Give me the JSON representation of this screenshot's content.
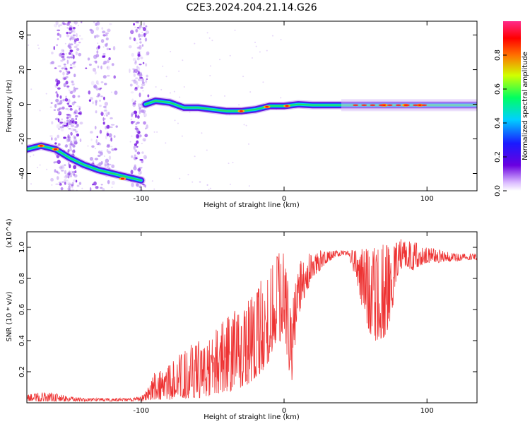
{
  "title": "C2E3.2024.204.21.14.G26",
  "chart_data": [
    {
      "type": "heatmap",
      "xlabel": "Height of straight line (km)",
      "ylabel": "Frequency (Hz)",
      "xlim": [
        -180,
        135
      ],
      "ylim": [
        -50,
        48
      ],
      "xticks": [
        -100,
        0,
        100
      ],
      "yticks": [
        -40,
        -20,
        0,
        20,
        40
      ],
      "colorbar": {
        "label": "Normalized spectral amplitude",
        "range": [
          0,
          1
        ],
        "ticks": [
          "0.0",
          "0.2",
          "0.4",
          "0.6",
          "0.8"
        ],
        "tick_values": [
          0,
          0.2,
          0.4,
          0.6,
          0.8
        ]
      },
      "ridge": {
        "x": [
          -180,
          -170,
          -160,
          -150,
          -140,
          -130,
          -120,
          -110,
          -100,
          -97,
          -90,
          -80,
          -70,
          -60,
          -50,
          -40,
          -30,
          -20,
          -10,
          0,
          10,
          20,
          40,
          60,
          80,
          100,
          120,
          135
        ],
        "y": [
          -26,
          -24,
          -26,
          -31,
          -35,
          -38,
          -40,
          -42,
          -44,
          0,
          2,
          1,
          -2,
          -2,
          -3,
          -4,
          -4,
          -3,
          -1,
          -1,
          0,
          -0.5,
          -0.5,
          -0.5,
          -0.5,
          -0.5,
          -0.5,
          -0.5
        ]
      }
    },
    {
      "type": "line",
      "xlabel": "Height of straight line (km)",
      "ylabel": "SNR (10 * v/v)",
      "yscale_note": "(x10^4)",
      "xlim": [
        -180,
        135
      ],
      "ylim": [
        0,
        1.1
      ],
      "xticks": [
        -100,
        0,
        100
      ],
      "yticks": [
        0.2,
        0.4,
        0.6,
        0.8,
        1.0
      ],
      "series": [
        {
          "color": "#ee3333",
          "x": [
            -180,
            -170,
            -160,
            -150,
            -140,
            -130,
            -120,
            -110,
            -100,
            -95,
            -90,
            -85,
            -80,
            -75,
            -70,
            -65,
            -60,
            -55,
            -50,
            -45,
            -40,
            -35,
            -30,
            -25,
            -20,
            -15,
            -10,
            -5,
            0,
            5,
            10,
            15,
            20,
            25,
            30,
            35,
            40,
            45,
            50,
            55,
            60,
            65,
            70,
            75,
            80,
            85,
            90,
            95,
            100,
            105,
            110,
            115,
            120,
            125,
            130,
            135
          ],
          "low": [
            0.01,
            0.01,
            0.01,
            0.01,
            0.01,
            0.01,
            0.01,
            0.01,
            0.01,
            0.02,
            0.02,
            0.02,
            0.02,
            0.03,
            0.03,
            0.03,
            0.03,
            0.04,
            0.04,
            0.05,
            0.06,
            0.08,
            0.1,
            0.12,
            0.16,
            0.2,
            0.28,
            0.35,
            0.45,
            0.1,
            0.55,
            0.7,
            0.8,
            0.85,
            0.9,
            0.93,
            0.95,
            0.95,
            0.8,
            0.6,
            0.45,
            0.38,
            0.4,
            0.55,
            0.85,
            0.88,
            0.85,
            0.88,
            0.9,
            0.9,
            0.9,
            0.91,
            0.91,
            0.92,
            0.92,
            0.92
          ],
          "high": [
            0.05,
            0.07,
            0.06,
            0.04,
            0.03,
            0.03,
            0.03,
            0.03,
            0.04,
            0.1,
            0.22,
            0.2,
            0.25,
            0.3,
            0.35,
            0.38,
            0.4,
            0.35,
            0.45,
            0.5,
            0.55,
            0.6,
            0.55,
            0.7,
            0.75,
            0.8,
            0.85,
            0.95,
            1.02,
            0.6,
            0.9,
            0.95,
            0.97,
            0.98,
            0.98,
            0.98,
            0.98,
            0.98,
            0.98,
            0.99,
            1.0,
            1.0,
            1.02,
            1.0,
            1.05,
            1.07,
            1.05,
            1.02,
            1.0,
            0.99,
            0.98,
            0.97,
            0.96,
            0.96,
            0.96,
            0.96
          ]
        }
      ]
    }
  ]
}
